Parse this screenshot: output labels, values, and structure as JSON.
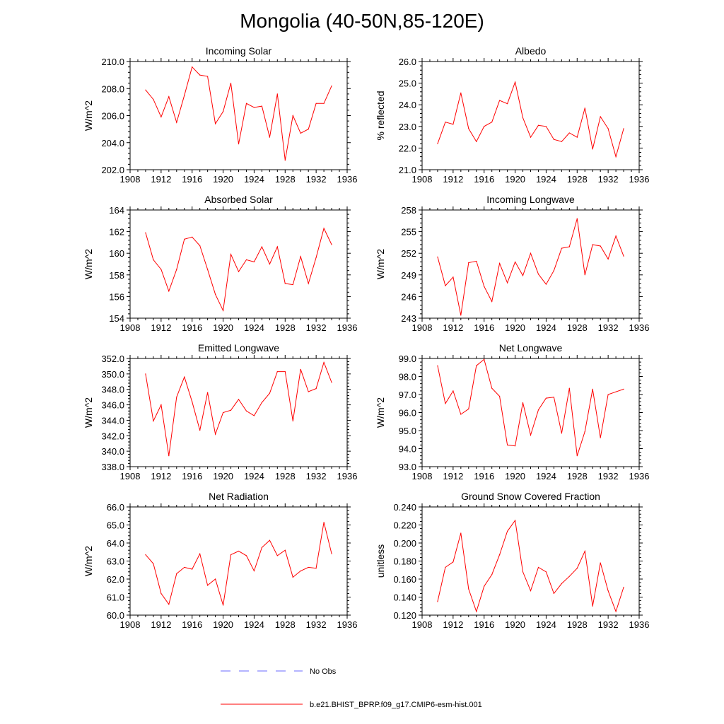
{
  "title": "Mongolia (40-50N,85-120E)",
  "colors": {
    "model_line": "#ff0000",
    "obs_line": "#6a6aff",
    "axis": "#000000"
  },
  "legend": {
    "obs_label": "No Obs",
    "model_label": "b.e21.BHIST_BPRP.f09_g17.CMIP6-esm-hist.001"
  },
  "chart_data": [
    {
      "type": "line",
      "title": "Incoming Solar",
      "ylabel": "W/m^2",
      "xlim": [
        1908,
        1936
      ],
      "ylim": [
        202,
        210
      ],
      "xticks": [
        1908,
        1912,
        1916,
        1920,
        1924,
        1928,
        1932,
        1936
      ],
      "xtick_labels": [
        "1908",
        "1912",
        "1916",
        "1920",
        "1924",
        "1928",
        "1932",
        "1936"
      ],
      "yticks": [
        202,
        204,
        206,
        208,
        210
      ],
      "ytick_labels": [
        "202.0",
        "204.0",
        "206.0",
        "208.0",
        "210.0"
      ],
      "x": [
        1910,
        1911,
        1912,
        1913,
        1914,
        1915,
        1916,
        1917,
        1918,
        1919,
        1920,
        1921,
        1922,
        1923,
        1924,
        1925,
        1926,
        1927,
        1928,
        1929,
        1930,
        1931,
        1932,
        1933,
        1934
      ],
      "series": [
        {
          "name": "b.e21.BHIST_BPRP.f09_g17.CMIP6-esm-hist.001",
          "values": [
            207.9,
            207.2,
            205.9,
            207.4,
            205.5,
            207.5,
            209.6,
            209.0,
            208.9,
            205.4,
            206.3,
            208.4,
            203.9,
            206.9,
            206.6,
            206.7,
            204.4,
            207.6,
            202.7,
            206.0,
            204.7,
            205.0,
            206.9,
            206.9,
            208.2
          ]
        }
      ]
    },
    {
      "type": "line",
      "title": "Albedo",
      "ylabel": "% reflected",
      "xlim": [
        1908,
        1936
      ],
      "ylim": [
        21,
        26
      ],
      "xticks": [
        1908,
        1912,
        1916,
        1920,
        1924,
        1928,
        1932,
        1936
      ],
      "xtick_labels": [
        "1908",
        "1912",
        "1916",
        "1920",
        "1924",
        "1928",
        "1932",
        "1936"
      ],
      "yticks": [
        21,
        22,
        23,
        24,
        25,
        26
      ],
      "ytick_labels": [
        "21.0",
        "22.0",
        "23.0",
        "24.0",
        "25.0",
        "26.0"
      ],
      "x": [
        1910,
        1911,
        1912,
        1913,
        1914,
        1915,
        1916,
        1917,
        1918,
        1919,
        1920,
        1921,
        1922,
        1923,
        1924,
        1925,
        1926,
        1927,
        1928,
        1929,
        1930,
        1931,
        1932,
        1933,
        1934
      ],
      "series": [
        {
          "name": "b.e21.BHIST_BPRP.f09_g17.CMIP6-esm-hist.001",
          "values": [
            22.2,
            23.2,
            23.1,
            24.55,
            22.9,
            22.3,
            23.0,
            23.2,
            24.2,
            24.05,
            25.05,
            23.4,
            22.5,
            23.05,
            23.0,
            22.4,
            22.3,
            22.7,
            22.5,
            23.85,
            21.95,
            23.45,
            22.9,
            21.6,
            22.9
          ]
        }
      ]
    },
    {
      "type": "line",
      "title": "Absorbed Solar",
      "ylabel": "W/m^2",
      "xlim": [
        1908,
        1936
      ],
      "ylim": [
        154,
        164
      ],
      "xticks": [
        1908,
        1912,
        1916,
        1920,
        1924,
        1928,
        1932,
        1936
      ],
      "xtick_labels": [
        "1908",
        "1912",
        "1916",
        "1920",
        "1924",
        "1928",
        "1932",
        "1936"
      ],
      "yticks": [
        154,
        156,
        158,
        160,
        162,
        164
      ],
      "ytick_labels": [
        "154",
        "156",
        "158",
        "160",
        "162",
        "164"
      ],
      "x": [
        1910,
        1911,
        1912,
        1913,
        1914,
        1915,
        1916,
        1917,
        1918,
        1919,
        1920,
        1921,
        1922,
        1923,
        1924,
        1925,
        1926,
        1927,
        1928,
        1929,
        1930,
        1931,
        1932,
        1933,
        1934
      ],
      "series": [
        {
          "name": "b.e21.BHIST_BPRP.f09_g17.CMIP6-esm-hist.001",
          "values": [
            161.9,
            159.4,
            158.5,
            156.5,
            158.5,
            161.3,
            161.5,
            160.7,
            158.5,
            156.2,
            154.7,
            159.9,
            158.3,
            159.4,
            159.2,
            160.6,
            159.0,
            160.6,
            157.2,
            157.1,
            159.7,
            157.2,
            159.6,
            162.3,
            160.8
          ]
        }
      ]
    },
    {
      "type": "line",
      "title": "Incoming Longwave",
      "ylabel": "W/m^2",
      "xlim": [
        1908,
        1936
      ],
      "ylim": [
        243,
        258
      ],
      "xticks": [
        1908,
        1912,
        1916,
        1920,
        1924,
        1928,
        1932,
        1936
      ],
      "xtick_labels": [
        "1908",
        "1912",
        "1916",
        "1920",
        "1924",
        "1928",
        "1932",
        "1936"
      ],
      "yticks": [
        243,
        246,
        249,
        252,
        255,
        258
      ],
      "ytick_labels": [
        "243",
        "246",
        "249",
        "252",
        "255",
        "258"
      ],
      "x": [
        1910,
        1911,
        1912,
        1913,
        1914,
        1915,
        1916,
        1917,
        1918,
        1919,
        1920,
        1921,
        1922,
        1923,
        1924,
        1925,
        1926,
        1927,
        1928,
        1929,
        1930,
        1931,
        1932,
        1933,
        1934
      ],
      "series": [
        {
          "name": "b.e21.BHIST_BPRP.f09_g17.CMIP6-esm-hist.001",
          "values": [
            251.5,
            247.5,
            248.7,
            243.4,
            250.7,
            250.9,
            247.4,
            245.3,
            250.6,
            247.9,
            250.8,
            248.9,
            252.0,
            249.1,
            247.7,
            249.6,
            252.7,
            252.9,
            256.8,
            249.0,
            253.2,
            253.0,
            251.2,
            254.4,
            251.6
          ]
        }
      ]
    },
    {
      "type": "line",
      "title": "Emitted Longwave",
      "ylabel": "W/m^2",
      "xlim": [
        1908,
        1936
      ],
      "ylim": [
        338,
        352
      ],
      "xticks": [
        1908,
        1912,
        1916,
        1920,
        1924,
        1928,
        1932,
        1936
      ],
      "xtick_labels": [
        "1908",
        "1912",
        "1916",
        "1920",
        "1924",
        "1928",
        "1932",
        "1936"
      ],
      "yticks": [
        338,
        340,
        342,
        344,
        346,
        348,
        350,
        352
      ],
      "ytick_labels": [
        "338.0",
        "340.0",
        "342.0",
        "344.0",
        "346.0",
        "348.0",
        "350.0",
        "352.0"
      ],
      "x": [
        1910,
        1911,
        1912,
        1913,
        1914,
        1915,
        1916,
        1917,
        1918,
        1919,
        1920,
        1921,
        1922,
        1923,
        1924,
        1925,
        1926,
        1927,
        1928,
        1929,
        1930,
        1931,
        1932,
        1933,
        1934
      ],
      "series": [
        {
          "name": "b.e21.BHIST_BPRP.f09_g17.CMIP6-esm-hist.001",
          "values": [
            350.0,
            343.9,
            346.0,
            339.4,
            347.0,
            349.6,
            346.4,
            342.7,
            347.6,
            342.2,
            345.0,
            345.3,
            346.7,
            345.2,
            344.6,
            346.3,
            347.5,
            350.3,
            350.3,
            343.9,
            350.6,
            347.7,
            348.1,
            351.5,
            348.9
          ]
        }
      ]
    },
    {
      "type": "line",
      "title": "Net Longwave",
      "ylabel": "W/m^2",
      "xlim": [
        1908,
        1936
      ],
      "ylim": [
        93,
        99
      ],
      "xticks": [
        1908,
        1912,
        1916,
        1920,
        1924,
        1928,
        1932,
        1936
      ],
      "xtick_labels": [
        "1908",
        "1912",
        "1916",
        "1920",
        "1924",
        "1928",
        "1932",
        "1936"
      ],
      "yticks": [
        93,
        94,
        95,
        96,
        97,
        98,
        99
      ],
      "ytick_labels": [
        "93.0",
        "94.0",
        "95.0",
        "96.0",
        "97.0",
        "98.0",
        "99.0"
      ],
      "x": [
        1910,
        1911,
        1912,
        1913,
        1914,
        1915,
        1916,
        1917,
        1918,
        1919,
        1920,
        1921,
        1922,
        1923,
        1924,
        1925,
        1926,
        1927,
        1928,
        1929,
        1930,
        1931,
        1932,
        1933,
        1934
      ],
      "series": [
        {
          "name": "b.e21.BHIST_BPRP.f09_g17.CMIP6-esm-hist.001",
          "values": [
            98.6,
            96.5,
            97.2,
            95.9,
            96.2,
            98.6,
            98.95,
            97.35,
            96.9,
            94.2,
            94.15,
            96.55,
            94.75,
            96.15,
            96.8,
            96.85,
            94.85,
            97.35,
            93.6,
            94.95,
            97.3,
            94.6,
            97.0,
            97.15,
            97.3
          ]
        }
      ]
    },
    {
      "type": "line",
      "title": "Net Radiation",
      "ylabel": "W/m^2",
      "xlim": [
        1908,
        1936
      ],
      "ylim": [
        60,
        66
      ],
      "xticks": [
        1908,
        1912,
        1916,
        1920,
        1924,
        1928,
        1932,
        1936
      ],
      "xtick_labels": [
        "1908",
        "1912",
        "1916",
        "1920",
        "1924",
        "1928",
        "1932",
        "1936"
      ],
      "yticks": [
        60,
        61,
        62,
        63,
        64,
        65,
        66
      ],
      "ytick_labels": [
        "60.0",
        "61.0",
        "62.0",
        "63.0",
        "64.0",
        "65.0",
        "66.0"
      ],
      "x": [
        1910,
        1911,
        1912,
        1913,
        1914,
        1915,
        1916,
        1917,
        1918,
        1919,
        1920,
        1921,
        1922,
        1923,
        1924,
        1925,
        1926,
        1927,
        1928,
        1929,
        1930,
        1931,
        1932,
        1933,
        1934
      ],
      "series": [
        {
          "name": "b.e21.BHIST_BPRP.f09_g17.CMIP6-esm-hist.001",
          "values": [
            63.35,
            62.85,
            61.2,
            60.6,
            62.3,
            62.65,
            62.55,
            63.4,
            61.65,
            62.0,
            60.55,
            63.35,
            63.55,
            63.3,
            62.45,
            63.75,
            64.15,
            63.3,
            63.6,
            62.1,
            62.45,
            62.65,
            62.6,
            65.15,
            63.4
          ]
        }
      ]
    },
    {
      "type": "line",
      "title": "Ground Snow Covered Fraction",
      "ylabel": "unitless",
      "xlim": [
        1908,
        1936
      ],
      "ylim": [
        0.12,
        0.24
      ],
      "xticks": [
        1908,
        1912,
        1916,
        1920,
        1924,
        1928,
        1932,
        1936
      ],
      "xtick_labels": [
        "1908",
        "1912",
        "1916",
        "1920",
        "1924",
        "1928",
        "1932",
        "1936"
      ],
      "yticks": [
        0.12,
        0.14,
        0.16,
        0.18,
        0.2,
        0.22,
        0.24
      ],
      "ytick_labels": [
        "0.120",
        "0.140",
        "0.160",
        "0.180",
        "0.200",
        "0.220",
        "0.240"
      ],
      "x": [
        1910,
        1911,
        1912,
        1913,
        1914,
        1915,
        1916,
        1917,
        1918,
        1919,
        1920,
        1921,
        1922,
        1923,
        1924,
        1925,
        1926,
        1927,
        1928,
        1929,
        1930,
        1931,
        1932,
        1933,
        1934
      ],
      "series": [
        {
          "name": "b.e21.BHIST_BPRP.f09_g17.CMIP6-esm-hist.001",
          "values": [
            0.135,
            0.173,
            0.179,
            0.211,
            0.149,
            0.124,
            0.152,
            0.165,
            0.187,
            0.213,
            0.225,
            0.168,
            0.147,
            0.173,
            0.168,
            0.144,
            0.155,
            0.163,
            0.172,
            0.191,
            0.13,
            0.178,
            0.147,
            0.124,
            0.151
          ]
        }
      ]
    }
  ]
}
